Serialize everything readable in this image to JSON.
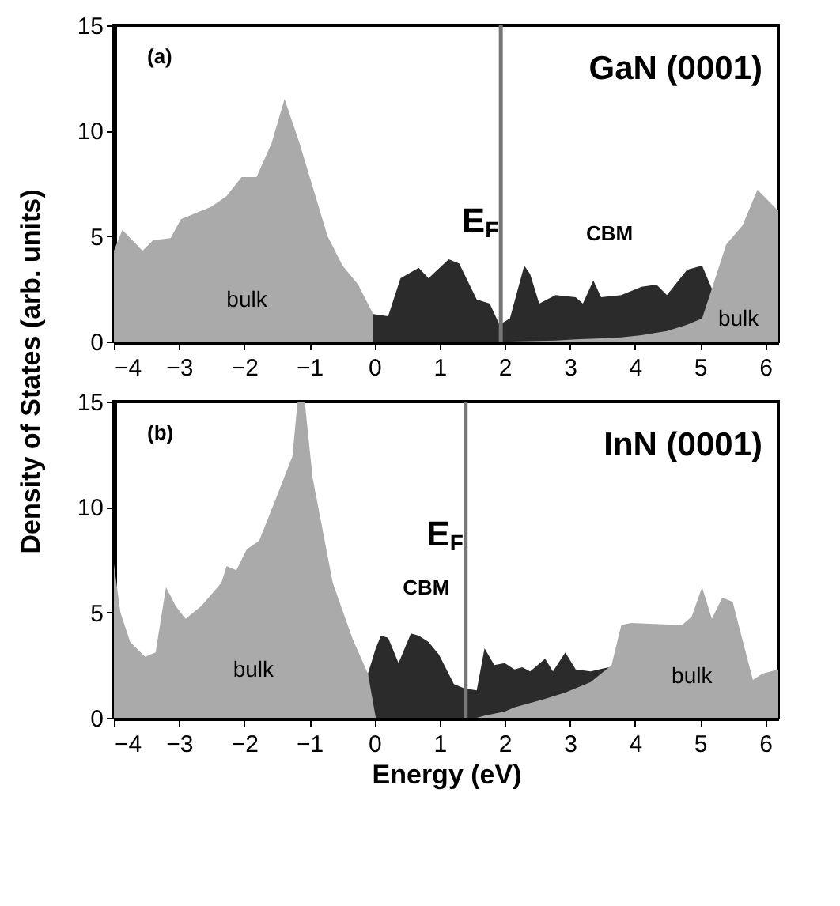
{
  "chart_data": [
    {
      "type": "area",
      "title": "GaN (0001)",
      "ylabel": "Density of States  (arb. units)",
      "annotations": [
        "(a)",
        "CBM",
        "bulk",
        "bulk"
      ],
      "xlim": [
        -4,
        6.2
      ],
      "ylim": [
        0,
        15
      ],
      "xticks": [
        -4,
        -3,
        -2,
        -1,
        0,
        1,
        2,
        3,
        4,
        5,
        6
      ],
      "yticks": [
        0,
        5,
        10,
        15
      ],
      "grid": false,
      "ref_lines": [
        {
          "axis": "x",
          "value": 1.94,
          "label": "E$_{F}$",
          "color": "#777777"
        }
      ],
      "series": [
        {
          "color": "#2b2b2b",
          "x": [
            -0.02,
            0.21,
            0.4,
            0.68,
            0.83,
            1.14,
            1.3,
            1.57,
            1.77,
            1.92,
            2.08,
            2.3,
            2.39,
            2.53,
            2.78,
            3.09,
            3.2,
            3.36,
            3.48,
            3.79,
            4.1,
            4.33,
            4.49,
            4.8,
            5.03,
            5.18
          ],
          "values": [
            1.3,
            1.2,
            3.0,
            3.5,
            3.0,
            3.9,
            3.7,
            2.0,
            1.8,
            0.8,
            1.1,
            3.6,
            3.2,
            1.8,
            2.2,
            2.1,
            1.8,
            2.9,
            2.1,
            2.2,
            2.6,
            2.7,
            2.2,
            3.4,
            3.6,
            2.5
          ]
        },
        {
          "color": "#aaaaaa",
          "x": [
            -4,
            -3.87,
            -3.56,
            -3.4,
            -3.13,
            -2.97,
            -2.5,
            -2.27,
            -2.04,
            -1.81,
            -1.58,
            -1.38,
            -1.15,
            -0.72,
            -0.49,
            -0.25,
            -0.02,
            1.0,
            2.08,
            2.78,
            3.09,
            3.48,
            3.79,
            4.1,
            4.49,
            4.8,
            5.03,
            5.18,
            5.4,
            5.65,
            5.88,
            6.2
          ],
          "values": [
            4.3,
            5.3,
            4.3,
            4.8,
            4.9,
            5.8,
            6.4,
            6.9,
            7.8,
            7.8,
            9.4,
            11.5,
            9.4,
            5.0,
            3.6,
            2.7,
            1.3,
            null,
            0,
            0.05,
            0.1,
            0.15,
            0.2,
            0.3,
            0.5,
            0.8,
            1.1,
            2.5,
            4.6,
            5.5,
            7.2,
            6.2
          ]
        }
      ]
    },
    {
      "type": "area",
      "title": "InN (0001)",
      "xlabel": "Energy (eV)",
      "annotations": [
        "(b)",
        "CBM",
        "bulk",
        "bulk"
      ],
      "xlim": [
        -4,
        6.2
      ],
      "ylim": [
        0,
        15
      ],
      "xticks": [
        -4,
        -3,
        -2,
        -1,
        0,
        1,
        2,
        3,
        4,
        5,
        6
      ],
      "yticks": [
        0,
        5,
        10,
        15
      ],
      "grid": false,
      "ref_lines": [
        {
          "axis": "x",
          "value": 1.4,
          "label": "E$_{F}$",
          "color": "#777777"
        }
      ],
      "series": [
        {
          "color": "#2b2b2b",
          "x": [
            -0.1,
            0.02,
            0.1,
            0.21,
            0.37,
            0.56,
            0.68,
            0.83,
            0.99,
            1.22,
            1.38,
            1.57,
            1.69,
            1.84,
            2.0,
            2.15,
            2.27,
            2.39,
            2.62,
            2.74,
            2.93,
            3.09,
            3.32,
            3.6
          ],
          "values": [
            2.1,
            3.3,
            3.9,
            3.8,
            2.6,
            4.0,
            3.9,
            3.6,
            3.0,
            1.6,
            1.4,
            1.3,
            3.3,
            2.5,
            2.6,
            2.3,
            2.4,
            2.2,
            2.8,
            2.2,
            3.1,
            2.3,
            2.2,
            2.4
          ]
        },
        {
          "color": "#aaaaaa",
          "x": [
            -4,
            -3.9,
            -3.75,
            -3.52,
            -3.36,
            -3.2,
            -3.05,
            -2.9,
            -2.66,
            -2.35,
            -2.27,
            -2.12,
            -1.96,
            -1.77,
            -1.5,
            -1.26,
            -1.18,
            -1.07,
            -0.95,
            -0.64,
            -0.33,
            -0.1,
            0.02,
            0.5,
            1.57,
            1.69,
            1.84,
            2.0,
            2.15,
            2.39,
            2.62,
            2.93,
            3.32,
            3.6,
            3.64,
            3.79,
            3.94,
            4.72,
            4.87,
            5.03,
            5.18,
            5.34,
            5.5,
            5.65,
            5.81,
            5.96,
            6.2
          ],
          "values": [
            7.3,
            5.0,
            3.6,
            2.9,
            3.1,
            6.2,
            5.3,
            4.7,
            5.3,
            6.4,
            7.2,
            7.0,
            8.0,
            8.4,
            10.5,
            12.4,
            15,
            15,
            11.4,
            6.4,
            3.7,
            2.1,
            0,
            null,
            0,
            0.1,
            0.2,
            0.3,
            0.5,
            0.7,
            0.9,
            1.2,
            1.7,
            2.4,
            2.5,
            4.4,
            4.5,
            4.4,
            4.8,
            6.2,
            4.7,
            5.7,
            5.5,
            3.7,
            1.8,
            2.1,
            2.3
          ]
        }
      ]
    }
  ]
}
